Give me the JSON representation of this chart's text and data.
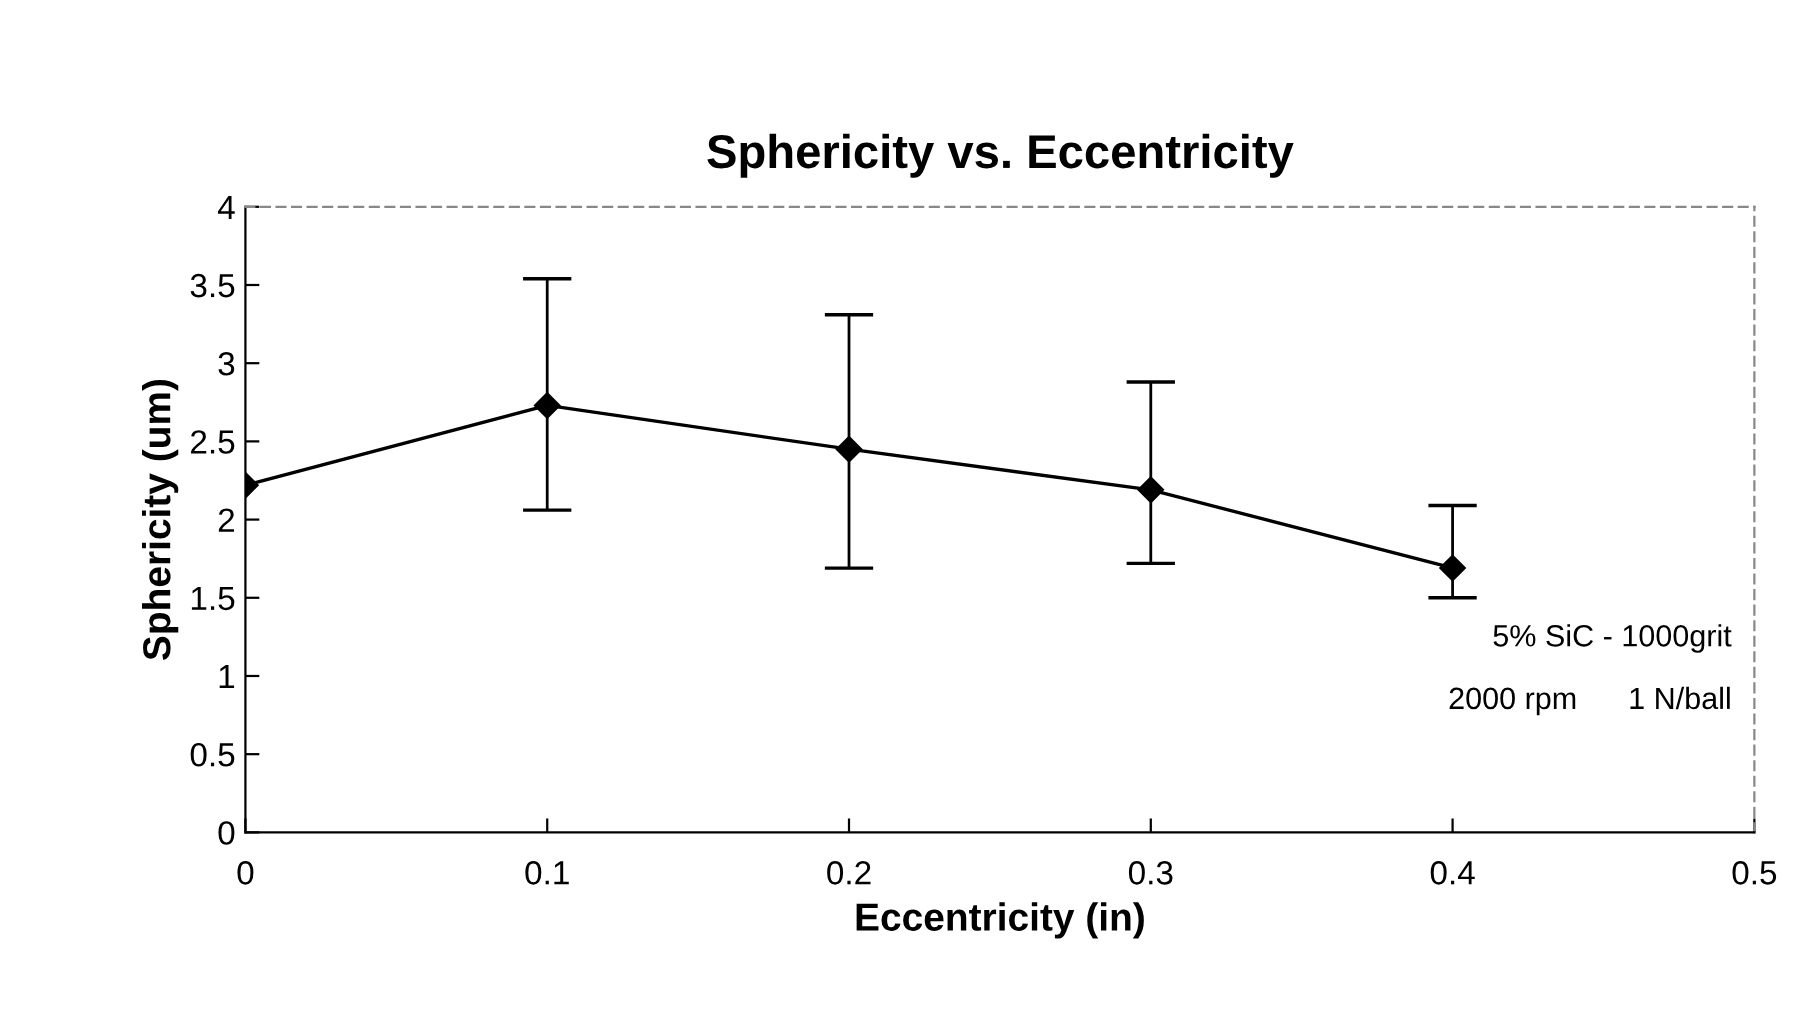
{
  "chart_data": {
    "type": "line",
    "title": "Sphericity vs. Eccentricity",
    "xlabel": "Eccentricity (in)",
    "ylabel": "Sphericity (um)",
    "x": [
      0,
      0.1,
      0.2,
      0.3,
      0.4
    ],
    "values": [
      2.22,
      2.73,
      2.45,
      2.19,
      1.69
    ],
    "errors": [
      null,
      [
        2.06,
        3.54
      ],
      [
        1.69,
        3.31
      ],
      [
        1.72,
        2.88
      ],
      [
        1.5,
        2.09
      ]
    ],
    "color": "#000000",
    "marker": "diamond",
    "line_style": "solid",
    "xlim": [
      0,
      0.5
    ],
    "xticks": [
      0,
      0.1,
      0.2,
      0.3,
      0.4,
      0.5
    ],
    "ylim": [
      0,
      4
    ],
    "yticks": [
      0,
      0.5,
      1,
      1.5,
      2,
      2.5,
      3,
      3.5,
      4
    ],
    "grid": false,
    "annotations": [
      "5% SiC - 1000grit",
      "2000 rpm      1 N/ball"
    ]
  }
}
